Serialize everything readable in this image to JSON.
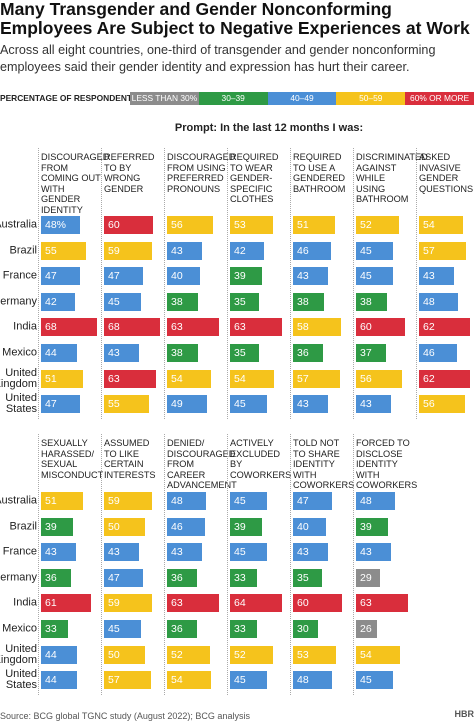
{
  "chart_data": {
    "type": "bar",
    "title": "Many Transgender and Gender Nonconforming Employees Are Subject to Negative Experiences at Work",
    "subtitle": "Across all eight countries, one-third of transgender and gender nonconforming employees said their gender identity and expression has hurt their career.",
    "legend_title": "PERCENTAGE OF RESPONDENTS:",
    "bins": [
      {
        "label": "LESS THAN 30%",
        "color": "#8c8c8c"
      },
      {
        "label": "30–39",
        "color": "#2e9a45",
        "min": 30
      },
      {
        "label": "40–49",
        "color": "#4b8fd6",
        "min": 40
      },
      {
        "label": "50–59",
        "color": "#f5c31c",
        "min": 50
      },
      {
        "label": "60% OR MORE",
        "color": "#d92e3c",
        "min": 60
      }
    ],
    "prompt": "Prompt: In the last 12 months I was:",
    "categories": [
      "Australia",
      "Brazil",
      "France",
      "Germany",
      "India",
      "Mexico",
      "United Kingdom",
      "United States"
    ],
    "xlim": [
      0,
      100
    ],
    "panels": [
      {
        "series": [
          {
            "name": "DISCOURAGED FROM COMING OUT WITH GENDER IDENTITY",
            "values": [
              48,
              55,
              47,
              42,
              68,
              44,
              51,
              47
            ],
            "value_labels": [
              "48%",
              "55",
              "47",
              "42",
              "68",
              "44",
              "51",
              "47"
            ]
          },
          {
            "name": "REFERRED TO BY WRONG GENDER",
            "values": [
              60,
              59,
              47,
              45,
              68,
              43,
              63,
              55
            ]
          },
          {
            "name": "DISCOURAGED FROM USING PREFERRED PRONOUNS",
            "values": [
              56,
              43,
              40,
              38,
              63,
              38,
              54,
              49
            ]
          },
          {
            "name": "REQUIRED TO WEAR GENDER-SPECIFIC CLOTHES",
            "values": [
              53,
              42,
              39,
              35,
              63,
              35,
              54,
              45
            ]
          },
          {
            "name": "REQUIRED TO USE A GENDERED BATHROOM",
            "values": [
              51,
              46,
              43,
              38,
              58,
              36,
              57,
              43
            ]
          },
          {
            "name": "DISCRIMINATED AGAINST WHILE USING BATHROOM",
            "values": [
              52,
              45,
              45,
              38,
              60,
              37,
              56,
              43
            ]
          },
          {
            "name": "ASKED INVASIVE GENDER QUESTIONS",
            "values": [
              54,
              57,
              43,
              48,
              62,
              46,
              62,
              56
            ]
          }
        ]
      },
      {
        "series": [
          {
            "name": "SEXUALLY HARASSED/ SEXUAL MISCONDUCT",
            "values": [
              51,
              39,
              43,
              36,
              61,
              33,
              44,
              44
            ]
          },
          {
            "name": "ASSUMED TO LIKE CERTAIN INTERESTS",
            "values": [
              59,
              50,
              43,
              47,
              59,
              45,
              50,
              57
            ]
          },
          {
            "name": "DENIED/ DISCOURAGED FROM CAREER ADVANCEMENT",
            "values": [
              48,
              46,
              43,
              36,
              63,
              36,
              52,
              54
            ]
          },
          {
            "name": "ACTIVELY EXCLUDED BY COWORKERS",
            "values": [
              45,
              39,
              45,
              33,
              64,
              33,
              52,
              45
            ]
          },
          {
            "name": "TOLD NOT TO SHARE IDENTITY WITH COWORKERS",
            "values": [
              47,
              40,
              43,
              35,
              60,
              30,
              53,
              48
            ]
          },
          {
            "name": "FORCED TO DISCLOSE IDENTITY WITH COWORKERS",
            "values": [
              48,
              39,
              43,
              29,
              63,
              26,
              54,
              45
            ]
          }
        ]
      }
    ],
    "source": "Source: BCG global TGNC study (August 2022); BCG analysis",
    "logo": "HBR"
  }
}
